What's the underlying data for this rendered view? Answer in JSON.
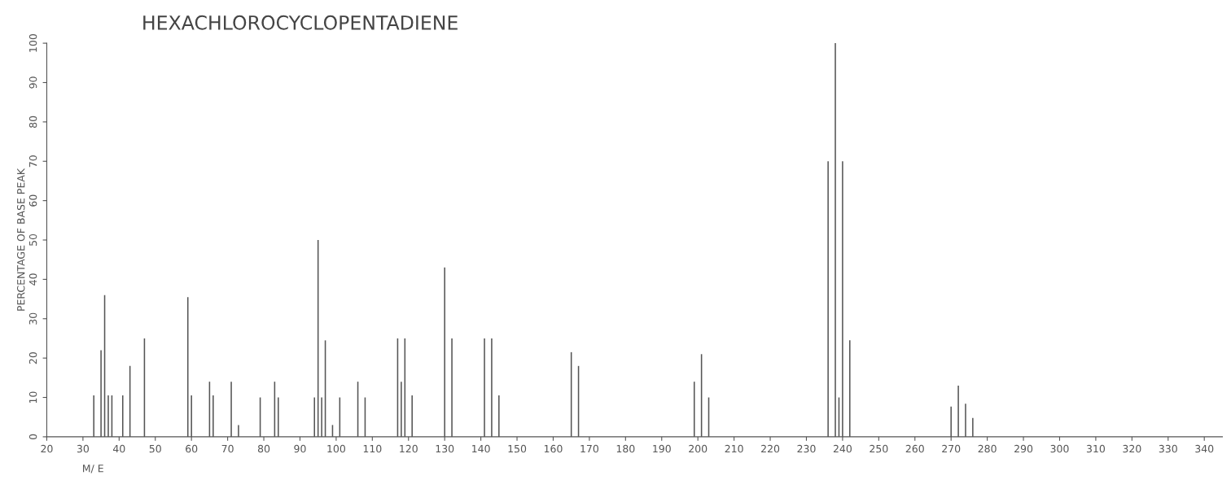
{
  "chart_data": {
    "type": "bar",
    "title": "HEXACHLOROCYCLOPENTADIENE",
    "xlabel": "M/ E",
    "ylabel": "PERCENTAGE OF BASE PEAK",
    "color": "#555555",
    "x": [
      33,
      35,
      36,
      37,
      38,
      41,
      43,
      47,
      59,
      60,
      65,
      66,
      71,
      73,
      79,
      83,
      84,
      94,
      95,
      96,
      97,
      99,
      101,
      106,
      108,
      117,
      118,
      119,
      121,
      130,
      132,
      141,
      143,
      145,
      165,
      167,
      199,
      201,
      203,
      236,
      238,
      239,
      240,
      242,
      270,
      272,
      274,
      276
    ],
    "values": [
      10.5,
      22,
      36,
      10.5,
      10.5,
      10.5,
      18,
      25,
      35.5,
      10.5,
      14,
      10.5,
      14,
      3,
      10,
      14,
      10,
      10,
      50,
      10,
      24.5,
      3,
      10,
      14,
      10,
      25,
      14,
      25,
      10.5,
      43,
      25,
      25,
      25,
      10.5,
      21.5,
      18,
      14,
      21,
      10,
      70,
      100,
      10,
      70,
      24.5,
      7.7,
      13,
      8.4,
      4.8
    ],
    "xlim": [
      20,
      345
    ],
    "xticks": [
      20,
      30,
      40,
      50,
      60,
      70,
      80,
      90,
      100,
      110,
      120,
      130,
      140,
      150,
      160,
      170,
      180,
      190,
      200,
      210,
      220,
      230,
      240,
      250,
      260,
      270,
      280,
      290,
      300,
      310,
      320,
      330,
      340
    ],
    "ylim": [
      0,
      100
    ],
    "yticks": [
      0,
      10,
      20,
      30,
      40,
      50,
      60,
      70,
      80,
      90,
      100
    ],
    "grid": false
  }
}
